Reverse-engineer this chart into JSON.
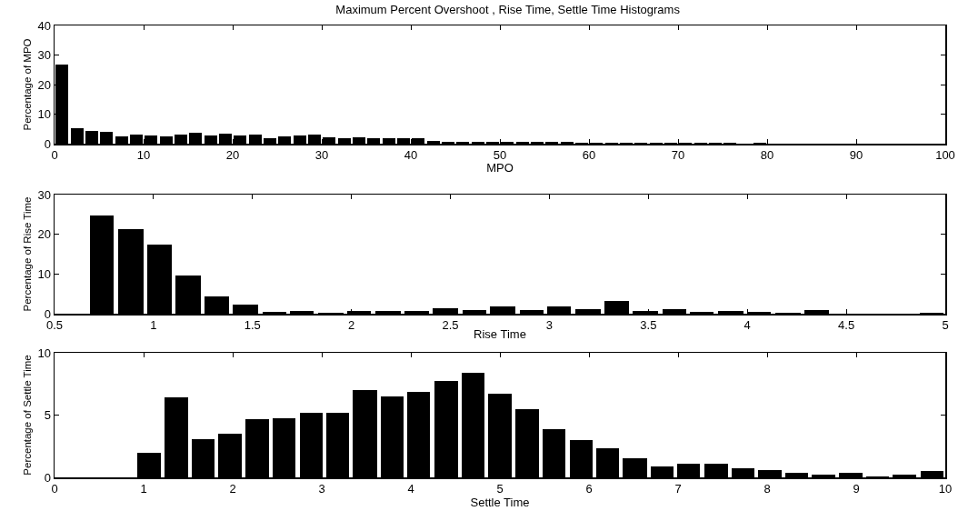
{
  "chart_data": [
    {
      "type": "histogram",
      "title": "Maximum Percent Overshoot , Rise Time, Settle Time Histograms",
      "xlabel": "MPO",
      "ylabel": "Percentage of MPO",
      "color": "#000000",
      "bins": [
        0,
        1.67,
        3.33,
        5,
        6.67,
        8.33,
        10,
        11.67,
        13.33,
        15,
        16.67,
        18.33,
        20,
        21.67,
        23.33,
        25,
        26.67,
        28.33,
        30,
        31.67,
        33.33,
        35,
        36.67,
        38.33,
        40,
        41.67,
        43.33,
        45,
        46.67,
        48.33,
        50,
        51.67,
        53.33,
        55,
        56.67,
        58.33,
        60,
        61.67,
        63.33,
        65,
        66.67,
        68.33,
        70,
        71.67,
        73.33,
        75,
        76.67,
        78.33,
        80,
        81.67,
        83.33,
        85,
        86.67
      ],
      "values": [
        26.7,
        5.2,
        4.3,
        4.1,
        2.5,
        3.0,
        2.8,
        2.5,
        3.2,
        3.6,
        2.7,
        3.3,
        2.7,
        3.0,
        2.0,
        2.5,
        2.8,
        3.0,
        2.1,
        1.7,
        2.1,
        2.0,
        1.9,
        1.9,
        1.8,
        1.0,
        0.6,
        0.5,
        0.6,
        0.6,
        0.6,
        0.5,
        0.5,
        0.6,
        0.5,
        0.4,
        0.4,
        0.3,
        0.3,
        0.3,
        0.4,
        0.3,
        0.2,
        0.2,
        0.3,
        0.2,
        0.1,
        0.2,
        0.1,
        0.1,
        0.1,
        0.1
      ],
      "xlim": [
        0,
        100
      ],
      "xticks": [
        0,
        10,
        20,
        30,
        40,
        50,
        60,
        70,
        80,
        90,
        100
      ],
      "ylim": [
        0,
        40
      ],
      "yticks": [
        0,
        10,
        20,
        30,
        40
      ],
      "grid": false
    },
    {
      "type": "histogram",
      "xlabel": "Rise Time",
      "ylabel": "Percentage of Rise Time",
      "color": "#000000",
      "bins": [
        0.67,
        0.81,
        0.96,
        1.1,
        1.25,
        1.39,
        1.54,
        1.68,
        1.82,
        1.97,
        2.11,
        2.26,
        2.4,
        2.55,
        2.69,
        2.84,
        2.98,
        3.12,
        3.27,
        3.41,
        3.56,
        3.7,
        3.84,
        3.99,
        4.13,
        4.28,
        4.42,
        4.86,
        5.0
      ],
      "values": [
        24.8,
        21.2,
        17.5,
        9.7,
        4.4,
        2.2,
        0.5,
        0.7,
        0.2,
        0.7,
        0.7,
        0.7,
        1.3,
        1.0,
        1.9,
        1.0,
        1.8,
        1.1,
        3.1,
        0.8,
        1.1,
        0.5,
        0.7,
        0.5,
        0.3,
        1.0,
        0,
        0.2
      ],
      "xlim": [
        0.5,
        5
      ],
      "xticks": [
        0.5,
        1,
        1.5,
        2,
        2.5,
        3,
        3.5,
        4,
        4.5,
        5
      ],
      "ylim": [
        0,
        30
      ],
      "yticks": [
        0,
        10,
        20,
        30
      ],
      "grid": false
    },
    {
      "type": "histogram",
      "xlabel": "Settle Time",
      "ylabel": "Percentage of Settle Time",
      "color": "#000000",
      "bins": [
        0.91,
        1.21,
        1.52,
        1.82,
        2.12,
        2.43,
        2.73,
        3.03,
        3.33,
        3.64,
        3.94,
        4.24,
        4.55,
        4.85,
        5.15,
        5.46,
        5.76,
        6.06,
        6.36,
        6.67,
        6.97,
        7.27,
        7.58,
        7.88,
        8.18,
        8.48,
        8.79,
        9.09,
        9.39,
        9.7,
        10.0
      ],
      "values": [
        2.0,
        6.4,
        3.1,
        3.5,
        4.65,
        4.75,
        5.2,
        5.15,
        7.0,
        6.5,
        6.85,
        7.75,
        8.4,
        6.75,
        5.5,
        3.85,
        3.0,
        2.3,
        1.5,
        0.9,
        1.1,
        1.1,
        0.75,
        0.6,
        0.4,
        0.2,
        0.4,
        0.1,
        0.2,
        0.5
      ],
      "xlim": [
        0,
        10
      ],
      "xticks": [
        0,
        1,
        2,
        3,
        4,
        5,
        6,
        7,
        8,
        9,
        10
      ],
      "ylim": [
        0,
        10
      ],
      "yticks": [
        0,
        5,
        10
      ],
      "grid": false
    }
  ]
}
